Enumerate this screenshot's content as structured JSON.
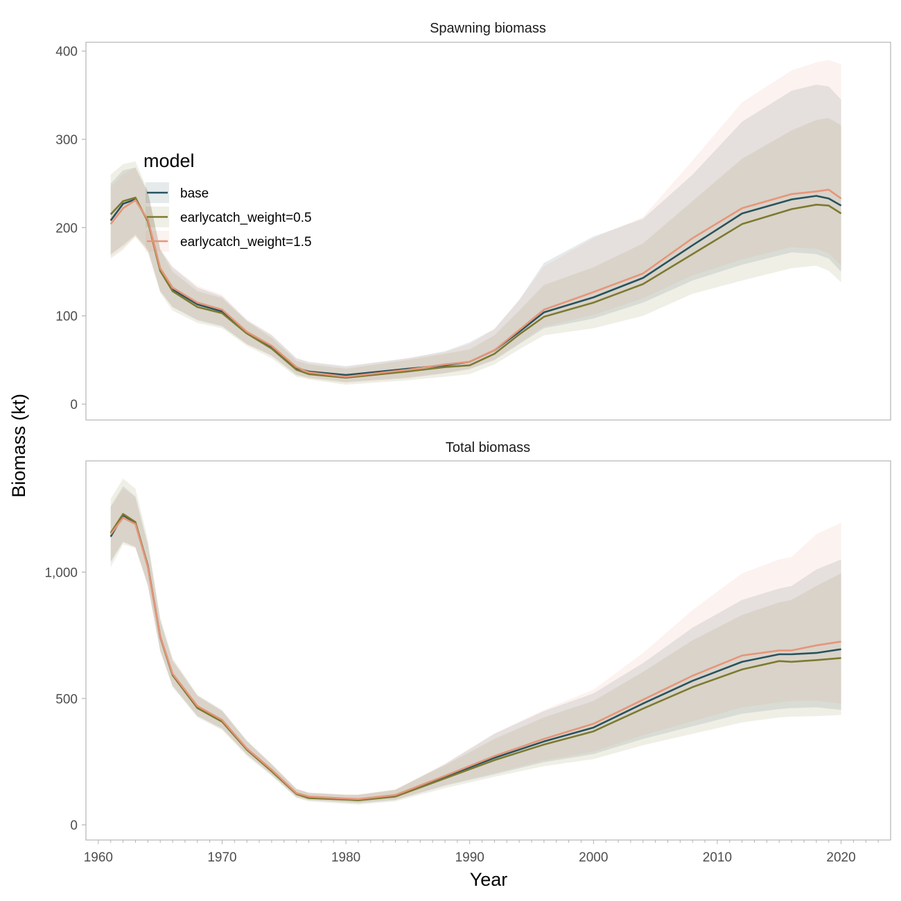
{
  "chart_data": {
    "type": "line",
    "xlabel": "Year",
    "ylabel": "Biomass (kt)",
    "xlim": [
      1959,
      2024
    ],
    "x_ticks": [
      1960,
      1970,
      1980,
      1990,
      2000,
      2010,
      2020
    ],
    "x_tick_labels": [
      "1960",
      "1970",
      "1980",
      "1990",
      "2000",
      "2010",
      "2020"
    ],
    "grid": false,
    "legend": {
      "title": "model",
      "placement": "top-left inside first panel",
      "entries": [
        "base",
        "earlycatch_weight=0.5",
        "earlycatch_weight=1.5"
      ]
    },
    "colors": {
      "base": "#27535e",
      "earlycatch_weight=0.5": "#7c7a30",
      "earlycatch_weight=1.5": "#e6957a"
    },
    "panels": [
      {
        "title": "Spawning biomass",
        "ylim": [
          -18,
          410
        ],
        "y_ticks": [
          0,
          100,
          200,
          300,
          400
        ],
        "y_tick_labels": [
          "0",
          "100",
          "200",
          "300",
          "400"
        ],
        "x": [
          1961,
          1962,
          1963,
          1964,
          1965,
          1966,
          1968,
          1970,
          1972,
          1974,
          1976,
          1977,
          1980,
          1985,
          1988,
          1990,
          1992,
          1994,
          1996,
          2000,
          2004,
          2008,
          2012,
          2016,
          2018,
          2019,
          2020
        ],
        "series": [
          {
            "name": "base",
            "values": [
              208,
              227,
              232,
              208,
              153,
              130,
              113,
              105,
              81,
              65,
              41,
              37,
              33,
              40,
              44,
              48,
              61,
              82,
              104,
              121,
              143,
              180,
              216,
              232,
              236,
              233,
              225
            ],
            "lower": [
              170,
              180,
              192,
              175,
              128,
              110,
              95,
              88,
              68,
              55,
              33,
              30,
              25,
              30,
              35,
              40,
              50,
              68,
              86,
              97,
              115,
              140,
              158,
              172,
              170,
              165,
              150
            ],
            "upper": [
              250,
              265,
              268,
              240,
              175,
              155,
              132,
              122,
              95,
              78,
              52,
              48,
              43,
              52,
              60,
              70,
              85,
              118,
              160,
              190,
              210,
              260,
              320,
              355,
              362,
              360,
              345
            ]
          },
          {
            "name": "earlycatch_weight=0.5",
            "values": [
              215,
              230,
              234,
              207,
              151,
              128,
              110,
              103,
              80,
              63,
              39,
              34,
              30,
              37,
              42,
              44,
              57,
              79,
              99,
              115,
              136,
              170,
              204,
              221,
              226,
              225,
              216
            ],
            "lower": [
              165,
              175,
              190,
              172,
              126,
              106,
              92,
              86,
              66,
              52,
              31,
              28,
              22,
              27,
              31,
              34,
              45,
              62,
              78,
              86,
              100,
              125,
              140,
              154,
              157,
              151,
              138
            ],
            "upper": [
              260,
              272,
              275,
              242,
              175,
              150,
              128,
              120,
              94,
              75,
              49,
              45,
              40,
              50,
              57,
              62,
              78,
              106,
              135,
              155,
              182,
              230,
              278,
              310,
              322,
              324,
              316
            ]
          },
          {
            "name": "earlycatch_weight=1.5",
            "values": [
              204,
              222,
              231,
              209,
              154,
              132,
              115,
              107,
              82,
              66,
              42,
              36,
              31,
              39,
              45,
              48,
              61,
              84,
              107,
              127,
              148,
              188,
              222,
              238,
              241,
              243,
              233
            ],
            "lower": [
              168,
              178,
              190,
              174,
              128,
              110,
              96,
              89,
              68,
              55,
              34,
              29,
              24,
              29,
              35,
              39,
              50,
              69,
              88,
              101,
              120,
              146,
              164,
              178,
              176,
              171,
              157
            ],
            "upper": [
              246,
              260,
              268,
              240,
              176,
              156,
              134,
              124,
              96,
              79,
              52,
              47,
              42,
              52,
              59,
              68,
              85,
              118,
              156,
              188,
              212,
              276,
              342,
              378,
              387,
              390,
              385
            ]
          }
        ]
      },
      {
        "title": "Total biomass",
        "ylim": [
          -60,
          1440
        ],
        "y_ticks": [
          0,
          500,
          1000
        ],
        "y_tick_labels": [
          "0",
          "500",
          "1,000"
        ],
        "x": [
          1961,
          1962,
          1963,
          1964,
          1965,
          1966,
          1968,
          1970,
          1972,
          1974,
          1976,
          1977,
          1980,
          1981,
          1984,
          1988,
          1992,
          1996,
          2000,
          2004,
          2008,
          2012,
          2015,
          2016,
          2018,
          2020
        ],
        "series": [
          {
            "name": "base",
            "values": [
              1140,
              1225,
              1195,
              1025,
              745,
              595,
              465,
              410,
              300,
              215,
              125,
              110,
              102,
              100,
              115,
              190,
              265,
              330,
              385,
              480,
              570,
              645,
              675,
              675,
              680,
              695
            ],
            "lower": [
              1040,
              1120,
              1100,
              950,
              690,
              550,
              430,
              380,
              278,
              198,
              110,
              97,
              88,
              85,
              98,
              155,
              200,
              248,
              280,
              340,
              390,
              440,
              458,
              462,
              465,
              455
            ],
            "upper": [
              1260,
              1340,
              1300,
              1110,
              810,
              650,
              510,
              450,
              330,
              238,
              142,
              126,
              118,
              118,
              138,
              240,
              360,
              450,
              520,
              640,
              780,
              890,
              935,
              945,
              1010,
              1050
            ]
          },
          {
            "name": "earlycatch_weight=0.5",
            "values": [
              1155,
              1230,
              1198,
              1022,
              742,
              592,
              462,
              408,
              297,
              212,
              122,
              106,
              100,
              97,
              112,
              184,
              256,
              318,
              370,
              460,
              545,
              615,
              648,
              645,
              652,
              660
            ],
            "lower": [
              1020,
              1110,
              1095,
              945,
              685,
              545,
              425,
              375,
              272,
              193,
              106,
              93,
              83,
              80,
              93,
              145,
              190,
              232,
              260,
              315,
              360,
              405,
              425,
              428,
              430,
              435
            ],
            "upper": [
              1290,
              1370,
              1330,
              1130,
              820,
              660,
              515,
              455,
              335,
              242,
              143,
              127,
              120,
              120,
              140,
              235,
              340,
              425,
              490,
              605,
              730,
              830,
              880,
              890,
              945,
              995
            ]
          },
          {
            "name": "earlycatch_weight=1.5",
            "values": [
              1150,
              1215,
              1190,
              1020,
              745,
              598,
              470,
              415,
              302,
              218,
              126,
              112,
              104,
              102,
              118,
              194,
              272,
              340,
              400,
              495,
              590,
              670,
              690,
              690,
              710,
              725
            ],
            "lower": [
              1045,
              1120,
              1098,
              948,
              690,
              552,
              432,
              382,
              280,
              200,
              112,
              99,
              90,
              87,
              100,
              158,
              205,
              255,
              290,
              355,
              410,
              465,
              485,
              490,
              492,
              480
            ],
            "upper": [
              1255,
              1330,
              1295,
              1105,
              808,
              652,
              512,
              452,
              332,
              240,
              142,
              128,
              120,
              120,
              140,
              242,
              362,
              455,
              535,
              680,
              850,
              995,
              1050,
              1060,
              1150,
              1195
            ]
          }
        ]
      }
    ]
  }
}
